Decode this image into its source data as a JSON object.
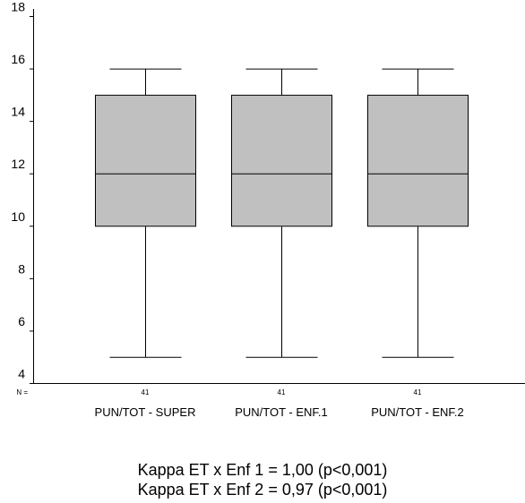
{
  "chart_data": {
    "type": "boxplot",
    "ylim": [
      4,
      18
    ],
    "yticks": [
      4,
      6,
      8,
      10,
      12,
      14,
      16,
      18
    ],
    "n_label": "N =",
    "grid": false,
    "colors": {
      "box_fill": "#c0c0c0",
      "stroke": "#000000"
    },
    "boxes": [
      {
        "category": "PUN/TOT - SUPER",
        "n": "41",
        "min": 5,
        "q1": 10,
        "median": 12,
        "q3": 15,
        "max": 16
      },
      {
        "category": "PUN/TOT - ENF.1",
        "n": "41",
        "min": 5,
        "q1": 10,
        "median": 12,
        "q3": 15,
        "max": 16
      },
      {
        "category": "PUN/TOT - ENF.2",
        "n": "41",
        "min": 5,
        "q1": 10,
        "median": 12,
        "q3": 15,
        "max": 16
      }
    ]
  },
  "captions": [
    "Kappa ET x Enf 1 = 1,00 (p<0,001)",
    "Kappa ET x Enf 2 = 0,97 (p<0,001)"
  ]
}
